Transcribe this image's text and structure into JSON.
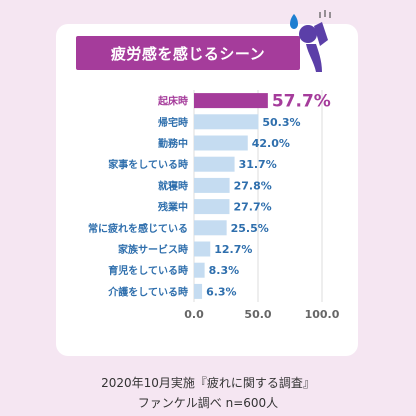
{
  "banner": {
    "title": "疲労感を感じるシーン"
  },
  "source": {
    "line1": "2020年10月実施『疲れに関する調査』",
    "line2": "ファンケル調べ n=600人"
  },
  "colors": {
    "background": "#f5e6f2",
    "accent": "#a53c9b",
    "bar": "#c5dcf1",
    "label": "#2f6fad",
    "figure": "#5b3fa8"
  },
  "chart_data": {
    "type": "bar",
    "orientation": "horizontal",
    "categories": [
      "起床時",
      "帰宅時",
      "勤務中",
      "家事をしている時",
      "就寝時",
      "残業中",
      "常に疲れを感じている",
      "家族サービス時",
      "育児をしている時",
      "介護をしている時"
    ],
    "values": [
      57.7,
      50.3,
      42.0,
      31.7,
      27.8,
      27.7,
      25.5,
      12.7,
      8.3,
      6.3
    ],
    "value_labels": [
      "57.7%",
      "50.3%",
      "42.0%",
      "31.7%",
      "27.8%",
      "27.7%",
      "25.5%",
      "12.7%",
      "8.3%",
      "6.3%"
    ],
    "xlim": [
      0,
      100
    ],
    "xticks": [
      "0.0",
      "50.0",
      "100.0"
    ],
    "highlight_index": 0,
    "grid": true
  }
}
